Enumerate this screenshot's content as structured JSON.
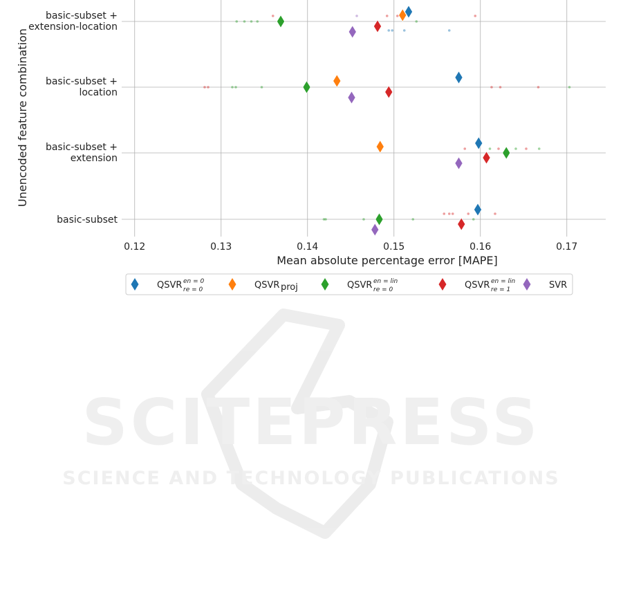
{
  "chart_data": {
    "type": "scatter",
    "xlabel": "Mean absolute percentage error [MAPE]",
    "ylabel": "Unencoded feature combination",
    "xlim": [
      0.1185,
      0.1745
    ],
    "xticks": [
      "0.12",
      "0.13",
      "0.14",
      "0.15",
      "0.16",
      "0.17"
    ],
    "grid": true,
    "legend_position": "bottom",
    "categories": [
      [
        "basic-subset +",
        "extension-location"
      ],
      [
        "basic-subset +",
        "location"
      ],
      [
        "basic-subset +",
        "extension"
      ],
      [
        "basic-subset"
      ]
    ],
    "series": [
      {
        "key": "qsvr_re0_en0",
        "legend_main": "QSVR",
        "legend_sup": "en = 0",
        "legend_sub": "re = 0",
        "color": "#1f77b4",
        "means": [
          0.1517,
          0.1575,
          0.1598,
          0.1597
        ],
        "runs": [
          [
            0.1494,
            0.1498,
            0.1512,
            0.1564
          ],
          [],
          [],
          []
        ]
      },
      {
        "key": "qsvr_proj",
        "legend_main": "QSVR",
        "legend_sup": "",
        "legend_sub": "proj",
        "color": "#ff7f0e",
        "means": [
          0.151,
          0.1434,
          0.1484,
          null
        ],
        "runs": [
          [],
          [],
          [],
          []
        ]
      },
      {
        "key": "qsvr_re0_enlin",
        "legend_main": "QSVR",
        "legend_sup": "en = lin",
        "legend_sub": "re = 0",
        "color": "#2ca02c",
        "means": [
          0.1369,
          0.1399,
          0.163,
          0.1483
        ],
        "runs": [
          [
            0.1318,
            0.1327,
            0.1335,
            0.1342,
            0.1526
          ],
          [
            0.1313,
            0.1317,
            0.1347,
            0.1703
          ],
          [
            0.1611,
            0.1641,
            0.1668
          ],
          [
            0.1419,
            0.1421,
            0.1465,
            0.1522,
            0.1592
          ]
        ]
      },
      {
        "key": "qsvr_re1_enlin",
        "legend_main": "QSVR",
        "legend_sup": "en = lin",
        "legend_sub": "re = 1",
        "color": "#d62728",
        "means": [
          0.1481,
          0.1494,
          0.1607,
          0.1578
        ],
        "runs": [
          [
            0.136,
            0.1492,
            0.1504,
            0.1594
          ],
          [
            0.1281,
            0.1285,
            0.1613,
            0.1623,
            0.1667
          ],
          [
            0.1582,
            0.1621,
            0.1653
          ],
          [
            0.1558,
            0.1564,
            0.1568,
            0.1586,
            0.1617
          ]
        ]
      },
      {
        "key": "svr",
        "legend_main": "SVR",
        "legend_sup": "",
        "legend_sub": "",
        "color": "#9467bd",
        "means": [
          0.1452,
          0.1451,
          0.1575,
          0.1478
        ],
        "runs": [
          [
            0.1457
          ],
          [],
          [],
          []
        ]
      }
    ]
  },
  "watermark": {
    "line1": "SCITEPRESS",
    "line2": "SCIENCE AND TECHNOLOGY PUBLICATIONS"
  }
}
